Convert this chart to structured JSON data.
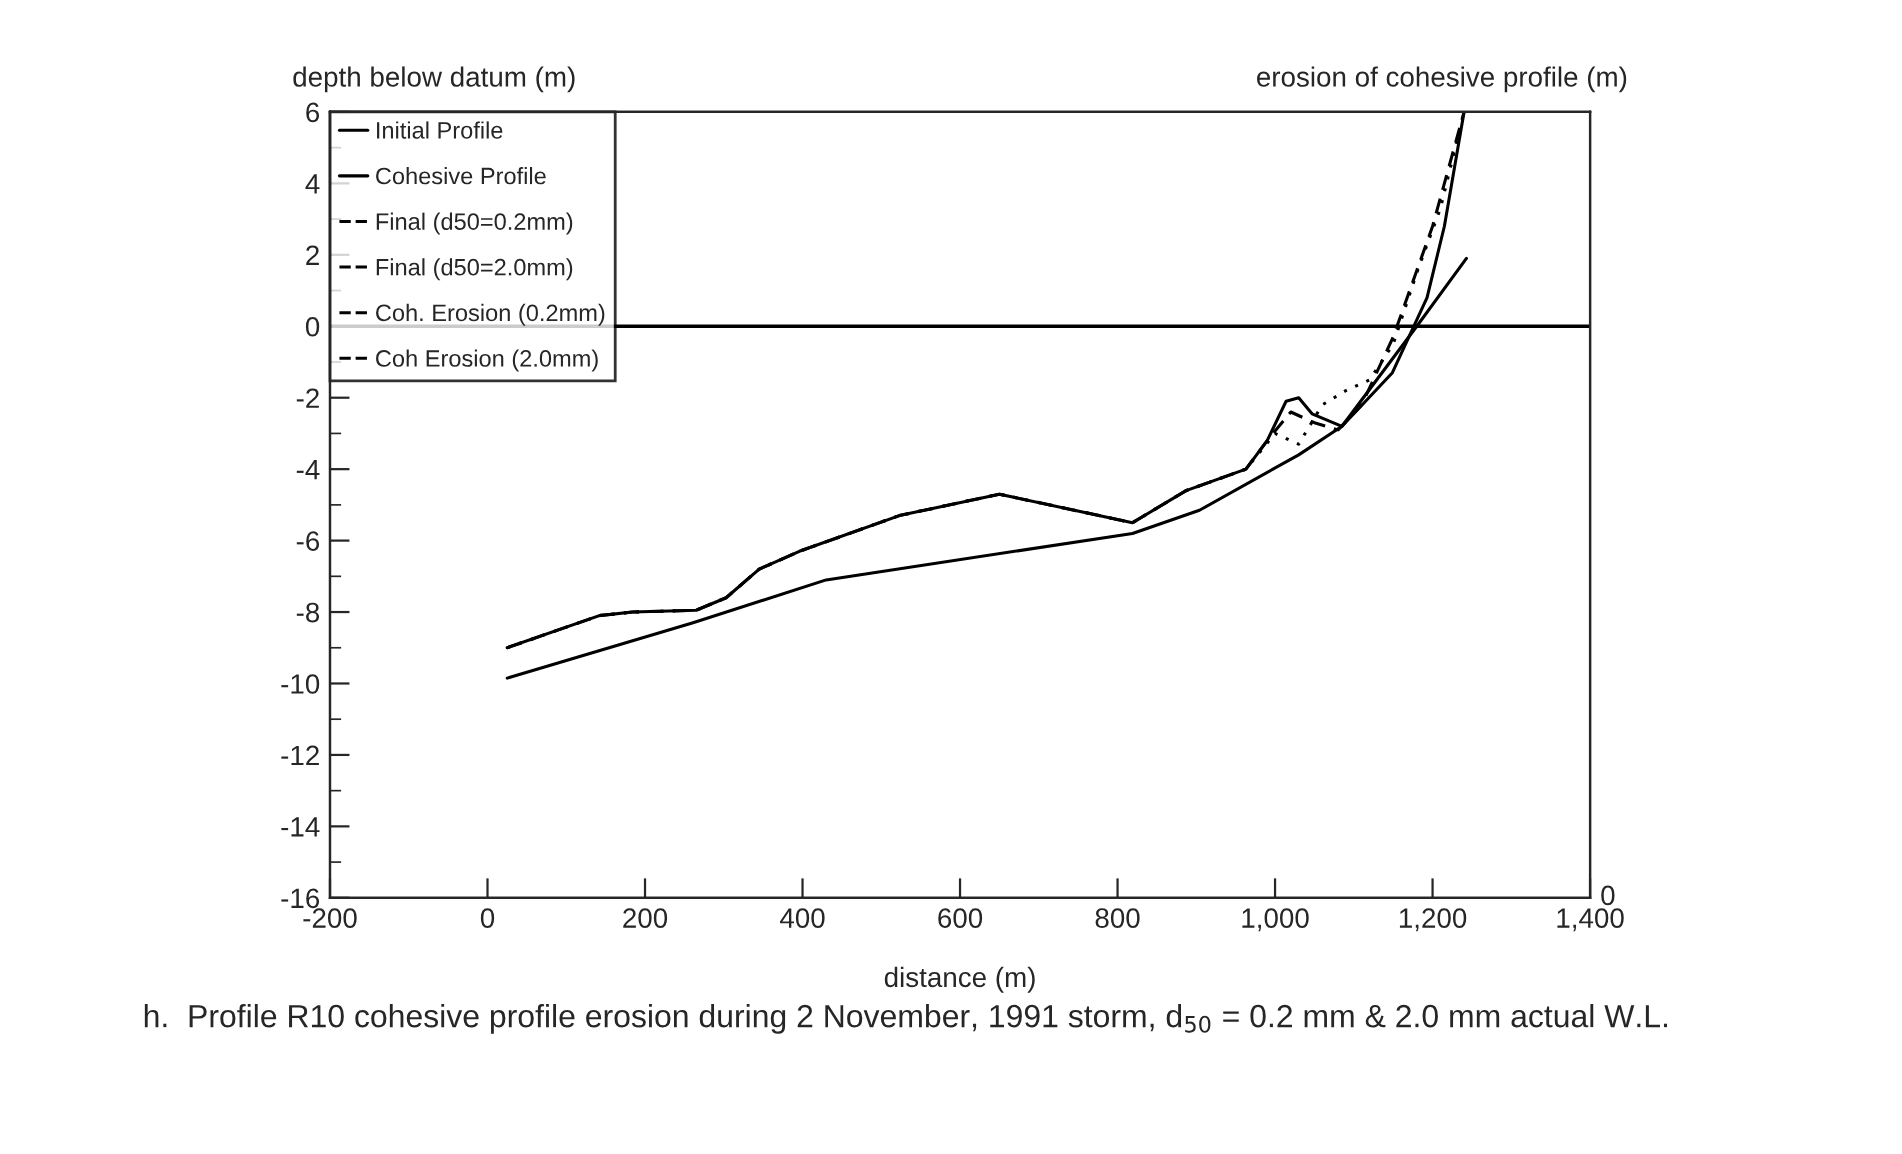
{
  "chart_data": {
    "type": "line",
    "xlabel": "distance (m)",
    "ylabel": "depth below datum (m)",
    "y2label": "erosion of cohesive profile (m)",
    "xlim": [
      -200,
      1400
    ],
    "ylim": [
      -16,
      6
    ],
    "xticks": [
      -200,
      0,
      200,
      400,
      600,
      800,
      {
        "value": 1000,
        "label": "1,000"
      },
      {
        "value": 1200,
        "label": "1,200"
      },
      {
        "value": 1400,
        "label": "1,400"
      }
    ],
    "yticks": [
      -16,
      -14,
      -12,
      -10,
      -8,
      -6,
      -4,
      -2,
      0,
      2,
      4,
      6
    ],
    "grid": false,
    "legend": "top left",
    "marker": "none",
    "ref_lines": [
      {
        "axis": "y",
        "value": 0,
        "color": "#000000"
      }
    ],
    "series": [
      {
        "name": "Initial Profile",
        "color": "#000000",
        "line_style": "solid",
        "x": [
          25,
          142,
          184,
          265,
          303,
          345,
          396,
          523,
          650,
          819,
          887,
          963,
          990,
          1014,
          1030,
          1047,
          1085,
          1149,
          1193,
          1215,
          1240
        ],
        "values": [
          -9.0,
          -8.1,
          -8.0,
          -7.95,
          -7.6,
          -6.8,
          -6.3,
          -5.3,
          -4.7,
          -5.5,
          -4.6,
          -4.0,
          -3.2,
          -2.1,
          -2.0,
          -2.45,
          -2.8,
          -1.3,
          0.8,
          2.8,
          6.0
        ]
      },
      {
        "name": "Cohesive Profile",
        "color": "#000000",
        "line_style": "solid",
        "x": [
          25,
          261,
          430,
          819,
          904,
          1030,
          1085,
          1180,
          1243
        ],
        "values": [
          -9.85,
          -8.3,
          -7.1,
          -5.8,
          -5.15,
          -3.6,
          -2.8,
          0.0,
          1.9
        ]
      },
      {
        "name": "Final (d50=0.2mm)",
        "color": "#000000",
        "line_style": "dotted",
        "x": [
          25,
          142,
          184,
          265,
          303,
          345,
          396,
          523,
          650,
          819,
          887,
          963,
          1000,
          1030,
          1060,
          1090,
          1120,
          1150,
          1180,
          1210,
          1240
        ],
        "values": [
          -9.0,
          -8.1,
          -8.0,
          -7.95,
          -7.6,
          -6.8,
          -6.3,
          -5.3,
          -4.7,
          -5.5,
          -4.6,
          -4.0,
          -3.0,
          -3.3,
          -2.2,
          -1.8,
          -1.5,
          -0.5,
          1.5,
          3.3,
          6.0
        ]
      },
      {
        "name": "Final (d50=2.0mm)",
        "color": "#000000",
        "line_style": "dashed",
        "x": [
          25,
          142,
          184,
          265,
          303,
          345,
          396,
          523,
          650,
          819,
          887,
          963,
          990,
          1020,
          1050,
          1080,
          1110,
          1150,
          1200,
          1240
        ],
        "values": [
          -9.0,
          -8.1,
          -8.0,
          -7.95,
          -7.6,
          -6.8,
          -6.3,
          -5.3,
          -4.7,
          -5.5,
          -4.6,
          -4.0,
          -3.2,
          -2.4,
          -2.7,
          -2.9,
          -2.2,
          -0.3,
          2.8,
          6.0
        ]
      },
      {
        "name": "Coh. Erosion (0.2mm)",
        "color": "#000000",
        "line_style": "dotted",
        "axis": "y2"
      },
      {
        "name": "Coh Erosion (2.0mm)",
        "color": "#000000",
        "line_style": "dashed",
        "axis": "y2"
      }
    ],
    "annotations": [
      "0",
      "h.  Profile R10 cohesive profile erosion during 2 November, 1991 storm, d$_{50}$ = 0.2 mm & 2.0 mm actual W.L."
    ]
  }
}
